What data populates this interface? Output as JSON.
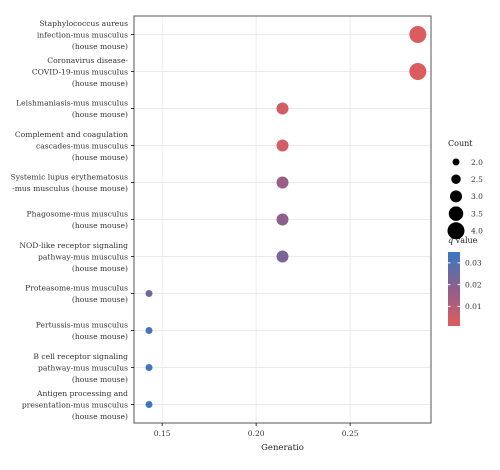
{
  "chart_data": {
    "type": "scatter",
    "xlabel": "Generatio",
    "xlim": [
      0.135,
      0.293
    ],
    "xticks": [
      0.15,
      0.2,
      0.25
    ],
    "xtick_labels": [
      "0.15",
      "0.20",
      "0.25"
    ],
    "grid": true,
    "categories": [
      [
        "Staphylococcus aureus",
        "infection-mus musculus",
        "(house mouse)"
      ],
      [
        "Coronavirus disease-",
        "COVID-19-mus musculus",
        "(house mouse)"
      ],
      [
        "Leishmaniasis-mus musculus",
        "(house mouse)"
      ],
      [
        "Complement and coagulation",
        "cascades-mus musculus",
        "(house mouse)"
      ],
      [
        "Systemic lupus erythematosus",
        "-mus musculus (house mouse)"
      ],
      [
        "Phagosome-mus musculus",
        "(house mouse)"
      ],
      [
        "NOD-like receptor signaling",
        "pathway-mus musculus",
        "(house mouse)"
      ],
      [
        "Proteasome-mus musculus",
        "(house mouse)"
      ],
      [
        "Pertussis-mus musculus",
        "(house mouse)"
      ],
      [
        "B cell receptor signaling",
        "pathway-mus musculus",
        "(house mouse)"
      ],
      [
        "Antigen processing and",
        "presentation-mus musculus",
        "(house mouse)"
      ]
    ],
    "points": [
      {
        "x": 0.286,
        "count": 4,
        "q": 0.002
      },
      {
        "x": 0.286,
        "count": 4,
        "q": 0.002
      },
      {
        "x": 0.214,
        "count": 3,
        "q": 0.004
      },
      {
        "x": 0.214,
        "count": 3,
        "q": 0.004
      },
      {
        "x": 0.214,
        "count": 3,
        "q": 0.015
      },
      {
        "x": 0.214,
        "count": 3,
        "q": 0.018
      },
      {
        "x": 0.214,
        "count": 3,
        "q": 0.022
      },
      {
        "x": 0.143,
        "count": 2,
        "q": 0.023
      },
      {
        "x": 0.143,
        "count": 2,
        "q": 0.032
      },
      {
        "x": 0.143,
        "count": 2,
        "q": 0.034
      },
      {
        "x": 0.143,
        "count": 2,
        "q": 0.034
      }
    ],
    "size_legend": {
      "title": "Count",
      "values": [
        2.0,
        2.5,
        3.0,
        3.5,
        4.0
      ],
      "labels": [
        "2.0",
        "2.5",
        "3.0",
        "3.5",
        "4.0"
      ]
    },
    "color_legend": {
      "title_italic": "q",
      "title_rest": " value",
      "qlim": [
        0.001,
        0.035
      ],
      "ticks": [
        0.01,
        0.02,
        0.03
      ],
      "tick_labels": [
        "0.01",
        "0.02",
        "0.03"
      ],
      "low_color": "#e05c5c",
      "high_color": "#3a78c0"
    }
  }
}
